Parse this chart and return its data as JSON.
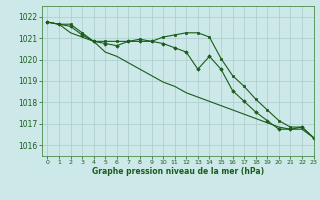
{
  "title": "Graphe pression niveau de la mer (hPa)",
  "background_color": "#cce8e8",
  "grid_color": "#aacccc",
  "line_color": "#1a5c1a",
  "marker_color": "#1a5c1a",
  "xlim": [
    -0.5,
    23
  ],
  "ylim": [
    1015.5,
    1022.5
  ],
  "yticks": [
    1016,
    1017,
    1018,
    1019,
    1020,
    1021,
    1022
  ],
  "xticks": [
    0,
    1,
    2,
    3,
    4,
    5,
    6,
    7,
    8,
    9,
    10,
    11,
    12,
    13,
    14,
    15,
    16,
    17,
    18,
    19,
    20,
    21,
    22,
    23
  ],
  "series1_y": [
    1021.75,
    1021.65,
    1021.65,
    1021.25,
    1020.85,
    1020.85,
    1020.85,
    1020.85,
    1020.95,
    1020.85,
    1021.05,
    1021.15,
    1021.25,
    1021.25,
    1021.05,
    1020.05,
    1019.25,
    1018.75,
    1018.15,
    1017.65,
    1017.15,
    1016.85,
    1016.85,
    1016.35
  ],
  "series2_y": [
    1021.75,
    1021.65,
    1021.55,
    1021.15,
    1020.85,
    1020.75,
    1020.65,
    1020.85,
    1020.85,
    1020.85,
    1020.75,
    1020.55,
    1020.35,
    1019.55,
    1020.15,
    1019.55,
    1018.55,
    1018.05,
    1017.55,
    1017.15,
    1016.75,
    1016.75,
    1016.85,
    1016.35
  ],
  "series3_y": [
    1021.75,
    1021.65,
    1021.25,
    1021.05,
    1020.85,
    1020.35,
    1020.15,
    1019.85,
    1019.55,
    1019.25,
    1018.95,
    1018.75,
    1018.45,
    1018.25,
    1018.05,
    1017.85,
    1017.65,
    1017.45,
    1017.25,
    1017.05,
    1016.85,
    1016.75,
    1016.75,
    1016.35
  ]
}
